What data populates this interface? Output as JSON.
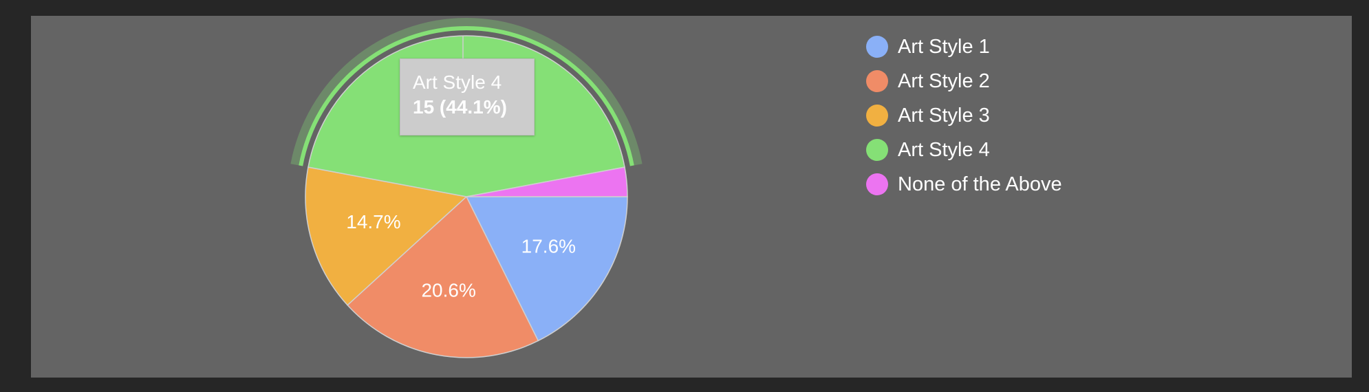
{
  "chart_data": {
    "type": "pie",
    "categories": [
      "Art Style 1",
      "Art Style 2",
      "Art Style 3",
      "Art Style 4",
      "None of the Above"
    ],
    "values": [
      6,
      7,
      5,
      15,
      1
    ],
    "percent_labels": [
      "17.6%",
      "20.6%",
      "14.7%",
      "",
      ""
    ],
    "colors": [
      "#8ab0f7",
      "#f08c67",
      "#f1b041",
      "#85e076",
      "#ec74f1"
    ],
    "legend_position": "right",
    "highlighted": {
      "category": "Art Style 4",
      "label": "Art Style 4",
      "value_text": "15 (44.1%)"
    }
  }
}
